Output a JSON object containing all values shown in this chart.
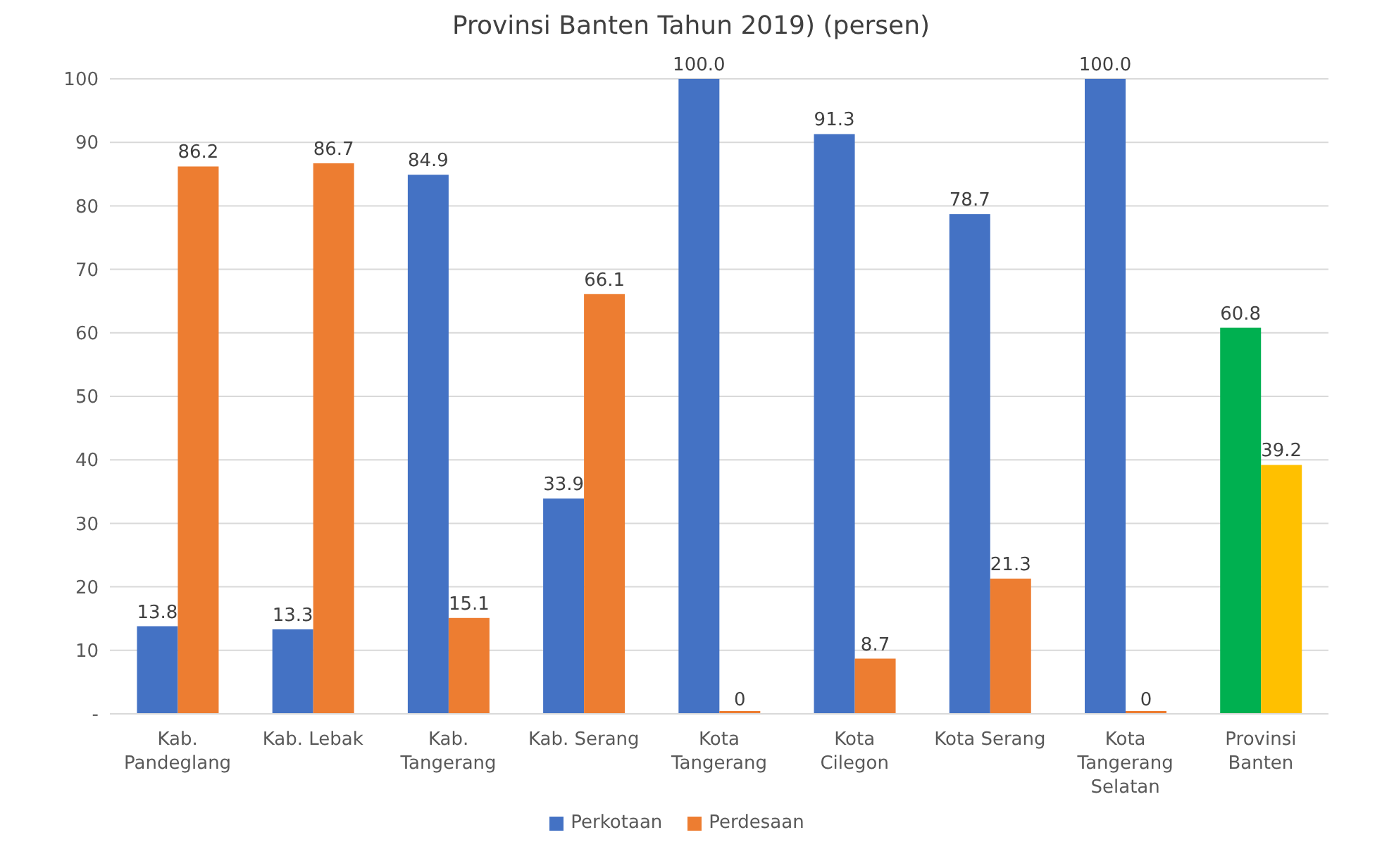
{
  "chart_data": {
    "type": "bar",
    "title": "Provinsi Banten Tahun 2019) (persen)",
    "categories": [
      "Kab. Pandeglang",
      "Kab. Lebak",
      "Kab. Tangerang",
      "Kab. Serang",
      "Kota Tangerang",
      "Kota Cilegon",
      "Kota Serang",
      "Kota Tangerang Selatan",
      "Provinsi Banten"
    ],
    "series": [
      {
        "name": "Perkotaan",
        "color": "#4472c4",
        "colors": [
          "#4472c4",
          "#4472c4",
          "#4472c4",
          "#4472c4",
          "#4472c4",
          "#4472c4",
          "#4472c4",
          "#4472c4",
          "#00b050"
        ],
        "values": [
          13.8,
          13.3,
          84.9,
          33.9,
          100.0,
          91.3,
          78.7,
          100.0,
          60.8
        ],
        "value_labels": [
          "13.8",
          "13.3",
          "84.9",
          "33.9",
          "100.0",
          "91.3",
          "78.7",
          "100.0",
          "60.8"
        ]
      },
      {
        "name": "Perdesaan",
        "color": "#ed7d31",
        "colors": [
          "#ed7d31",
          "#ed7d31",
          "#ed7d31",
          "#ed7d31",
          "#ed7d31",
          "#ed7d31",
          "#ed7d31",
          "#ed7d31",
          "#ffc000"
        ],
        "values": [
          86.2,
          86.7,
          15.1,
          66.1,
          0,
          8.7,
          21.3,
          0,
          39.2
        ],
        "value_labels": [
          "86.2",
          "86.7",
          "15.1",
          "66.1",
          "0",
          "8.7",
          "21.3",
          "0",
          "39.2"
        ]
      }
    ],
    "ylim": [
      0,
      100
    ],
    "yticks": [
      {
        "value": 0,
        "label": "-"
      },
      10,
      20,
      30,
      40,
      50,
      60,
      70,
      80,
      90,
      100
    ],
    "grid": "y",
    "legend": "bottom"
  }
}
